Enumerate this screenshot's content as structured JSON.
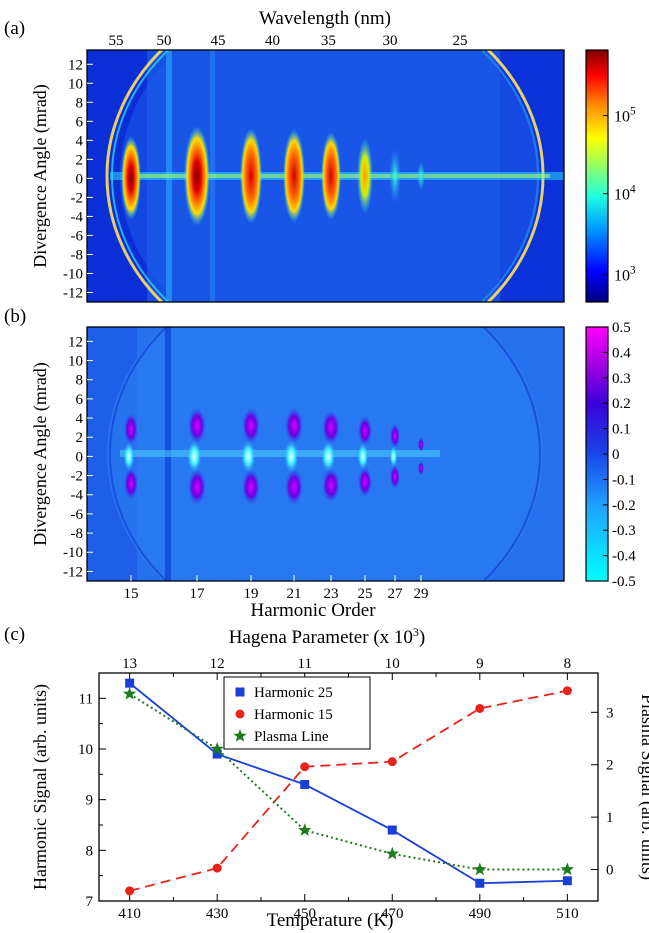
{
  "colors": {
    "harmonic25": "#1a3fd6",
    "harmonic15": "#e8231c",
    "plasma": "#1f7a1f"
  },
  "chart_data": [
    {
      "panel": "(a)",
      "type": "heatmap",
      "top_axis_label": "Wavelength (nm)",
      "top_ticks": [
        "55",
        "50",
        "45",
        "40",
        "35",
        "30",
        "25"
      ],
      "ylabel": "Divergence Angle (mrad)",
      "y_ticks": [
        12,
        10,
        8,
        6,
        4,
        2,
        0,
        -2,
        -4,
        -6,
        -8,
        -10,
        -12
      ],
      "ylim": [
        -13,
        13.5
      ],
      "colorbar": {
        "scale": "log",
        "ticks": [
          "10^5",
          "10^4",
          "10^3"
        ],
        "colormap": "jet"
      },
      "harmonic_orders": [
        15,
        17,
        19,
        21,
        23,
        25,
        27,
        29
      ]
    },
    {
      "panel": "(b)",
      "type": "heatmap",
      "ylabel": "Divergence Angle (mrad)",
      "xlabel": "Harmonic Order",
      "x_ticks": [
        "15",
        "17",
        "19",
        "21",
        "23",
        "25",
        "27",
        "29"
      ],
      "y_ticks": [
        12,
        10,
        8,
        6,
        4,
        2,
        0,
        -2,
        -4,
        -6,
        -8,
        -10,
        -12
      ],
      "ylim": [
        -13,
        13.5
      ],
      "colorbar": {
        "scale": "linear",
        "ticks": [
          "0.5",
          "0.4",
          "0.3",
          "0.2",
          "0.1",
          "0",
          "-0.1",
          "-0.2",
          "-0.3",
          "-0.4",
          "-0.5"
        ],
        "colormap": "cyan-blue-magenta"
      }
    },
    {
      "panel": "(c)",
      "type": "line",
      "top_axis_label": "Hagena Parameter (x 10",
      "top_axis_sup": "3",
      "top_axis_suffix": ")",
      "top_ticks": [
        "13",
        "12",
        "11",
        "10",
        "9",
        "8"
      ],
      "xlabel": "Temperature (K)",
      "x": [
        410,
        430,
        450,
        470,
        490,
        510
      ],
      "x_ticks": [
        "410",
        "430",
        "450",
        "470",
        "490",
        "510"
      ],
      "xlim": [
        403,
        517
      ],
      "ylabel": "Harmonic Signal (arb. units)",
      "ylim": [
        7,
        11.5
      ],
      "y_ticks": [
        "7",
        "8",
        "9",
        "10",
        "11"
      ],
      "y2label": "Plasma Signal (arb. units)",
      "y2lim": [
        -0.6,
        3.75
      ],
      "y2_ticks": [
        "0",
        "1",
        "2",
        "3"
      ],
      "legend_position": "top-center",
      "series": [
        {
          "name": "Harmonic 25",
          "axis": "left",
          "marker": "square",
          "style": "solid",
          "values": [
            11.3,
            9.9,
            9.3,
            8.4,
            7.35,
            7.4
          ]
        },
        {
          "name": "Harmonic 15",
          "axis": "left",
          "marker": "circle",
          "style": "dashed",
          "values": [
            7.2,
            7.65,
            9.65,
            9.75,
            10.8,
            11.15
          ]
        },
        {
          "name": "Plasma Line",
          "axis": "right",
          "marker": "star",
          "style": "dotted",
          "values": [
            3.35,
            2.3,
            0.75,
            0.3,
            0.0,
            0.0
          ]
        }
      ]
    }
  ]
}
